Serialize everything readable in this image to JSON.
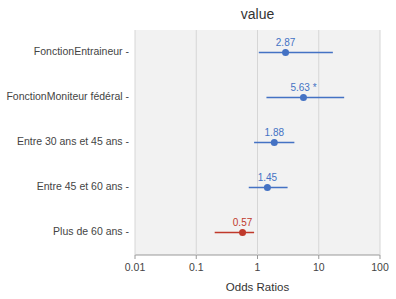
{
  "chart_data": {
    "type": "forest",
    "title": "value",
    "xlabel": "Odds Ratios",
    "categories": [
      "FonctionEntraineur -",
      "FonctionMoniteur fédéral -",
      "Entre 30 ans et 45 ans -",
      "Entre 45 et 60 ans -",
      "Plus de 60 ans -"
    ],
    "values": [
      2.87,
      5.63,
      1.88,
      1.45,
      0.57
    ],
    "ci_lower": [
      1.05,
      1.4,
      0.88,
      0.72,
      0.2
    ],
    "ci_upper": [
      17.0,
      26.0,
      4.0,
      3.1,
      0.88
    ],
    "value_labels": [
      "2.87",
      "5.63 *",
      "1.88",
      "1.45",
      "0.57"
    ],
    "data_labels": true,
    "colors": [
      "#4472C4",
      "#4472C4",
      "#4472C4",
      "#4472C4",
      "#C0392B"
    ],
    "log": "x",
    "xlim": [
      0.01,
      100
    ],
    "xticks": [
      0.01,
      0.1,
      1,
      10,
      100
    ],
    "grid": true
  }
}
